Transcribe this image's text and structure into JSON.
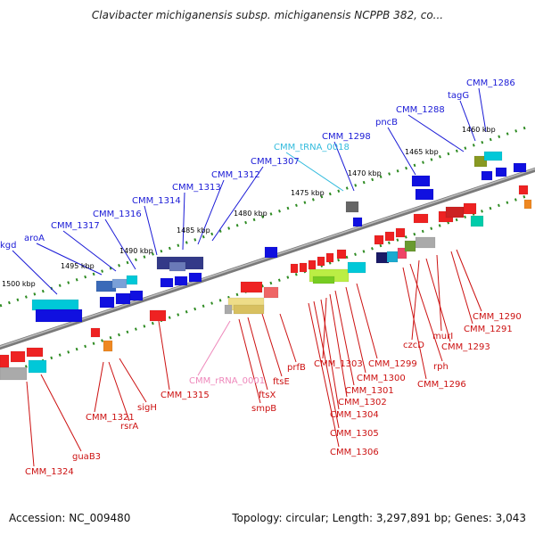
{
  "title": "Clavibacter michiganensis subsp. michiganensis NCPPB 382, co...",
  "footer": {
    "accession": "Accession: NC_009480",
    "topology": "Topology: circular; Length: 3,297,891 bp; Genes: 3,043"
  },
  "colors": {
    "forward_label": "#1a1ad6",
    "reverse_label": "#cc1111",
    "trna_label": "#33bbdd",
    "rrna_label": "#ee88bb",
    "backbone": "#888888"
  },
  "scale_labels": [
    "1460 kbp",
    "1465 kbp",
    "1470 kbp",
    "1475 kbp",
    "1480 kbp",
    "1485 kbp",
    "1490 kbp",
    "1495 kbp",
    "1500 kbp"
  ],
  "forward_genes": [
    "CMM_1286",
    "tagG",
    "CMM_1288",
    "pncB",
    "CMM_1298",
    "CMM_tRNA_0018",
    "CMM_1307",
    "CMM_1312",
    "CMM_1313",
    "CMM_1314",
    "CMM_1316",
    "CMM_1317",
    "aroA",
    "kgd"
  ],
  "reverse_genes": [
    "CMM_1290",
    "CMM_1291",
    "murI",
    "CMM_1293",
    "czcD",
    "rph",
    "CMM_1296",
    "CMM_1299",
    "CMM_1300",
    "CMM_1301",
    "CMM_1302",
    "CMM_1303",
    "CMM_1304",
    "CMM_1305",
    "CMM_1306",
    "prfB",
    "ftsE",
    "ftsX",
    "smpB",
    "CMM_rRNA_0001",
    "CMM_1315",
    "sigH",
    "rsrA",
    "CMM_1321",
    "guaB3",
    "CMM_1324"
  ]
}
